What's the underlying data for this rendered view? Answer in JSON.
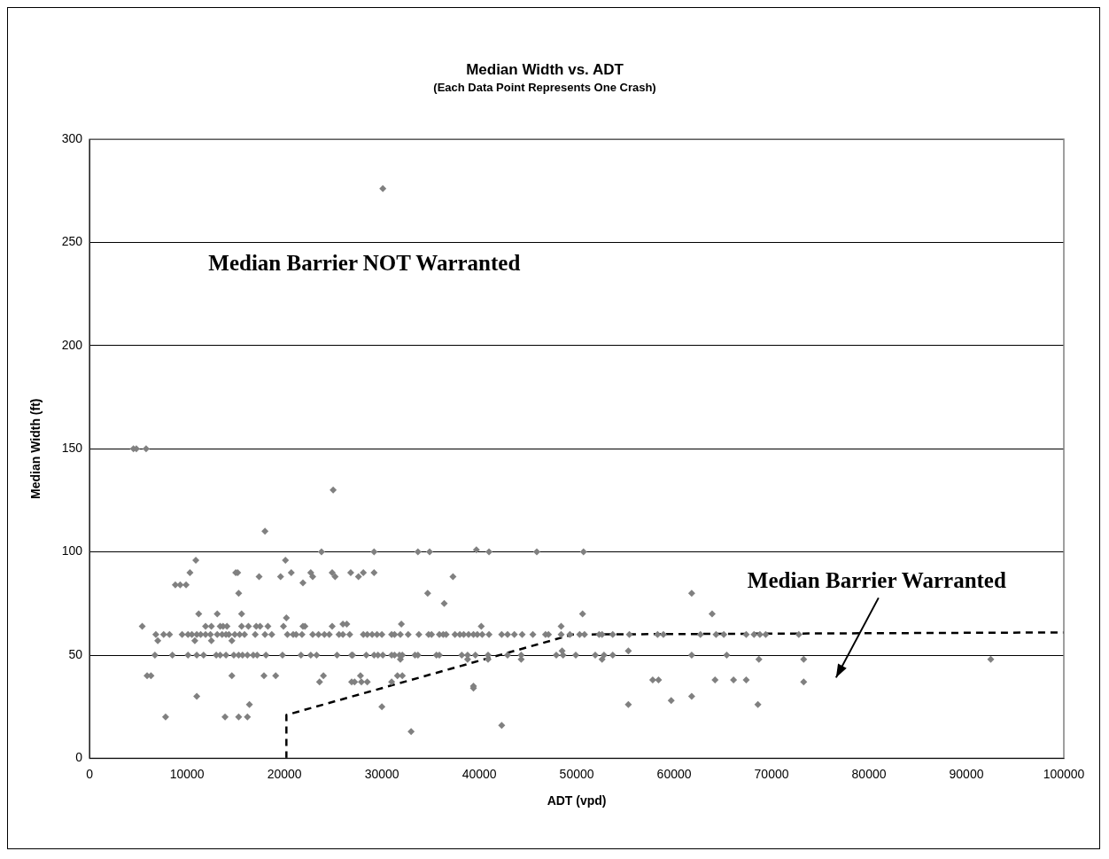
{
  "chart_data": {
    "type": "scatter",
    "title": "Median Width vs. ADT",
    "subtitle": "(Each Data Point Represents One Crash)",
    "xlabel": "ADT (vpd)",
    "ylabel": "Median Width (ft)",
    "xlim": [
      0,
      100000
    ],
    "xticks": [
      0,
      10000,
      20000,
      30000,
      40000,
      50000,
      60000,
      70000,
      80000,
      90000,
      100000
    ],
    "ylim": [
      0,
      300
    ],
    "yticks": [
      0,
      50,
      100,
      150,
      200,
      250,
      300
    ],
    "grid": "y",
    "legend": false,
    "marker": "diamond",
    "annotations": [
      "Median Barrier NOT Warranted",
      "Median Barrier Warranted"
    ],
    "series": [
      {
        "color": "#808080",
        "x": [
          25000,
          18000,
          23800,
          10900,
          20100,
          10300,
          15000,
          15200,
          17400,
          19600,
          20700,
          22700,
          22900,
          24900,
          25200,
          8800,
          9300,
          9900,
          21900,
          15300,
          11200,
          13100,
          15600,
          5400,
          20200,
          11900,
          12500,
          13400,
          13700,
          14100,
          15600,
          16300,
          17100,
          17500,
          18300,
          19900,
          21900,
          22100,
          24900,
          6800,
          7600,
          8200,
          9500,
          10100,
          10500,
          11000,
          11400,
          11900,
          12400,
          13100,
          13600,
          14000,
          14300,
          14900,
          15400,
          15900,
          17000,
          18000,
          18700,
          20300,
          20900,
          21200,
          21800,
          22900,
          23500,
          24100,
          24600,
          25600,
          7000,
          10800,
          12500,
          14600,
          6700,
          8500,
          10100,
          11000,
          11700,
          13000,
          13400,
          14000,
          14800,
          15300,
          15700,
          16200,
          16800,
          17200,
          18100,
          19800,
          21700,
          22700,
          23300,
          25400,
          5900,
          6300,
          14600,
          17900,
          19100,
          24000,
          23600,
          29200,
          33700,
          34900,
          41000,
          45900,
          50700,
          39700,
          26800,
          28100,
          29200,
          27600,
          37300,
          34700,
          36400,
          50600,
          26000,
          26400,
          32000,
          40200,
          48400,
          26000,
          26700,
          28100,
          28500,
          29000,
          29500,
          30000,
          31000,
          31300,
          31900,
          32700,
          33800,
          34800,
          35100,
          35900,
          36300,
          36600,
          37500,
          38000,
          38400,
          38900,
          39400,
          39800,
          40300,
          41000,
          42300,
          42900,
          43600,
          44400,
          45500,
          46800,
          47100,
          48400,
          49300,
          50300,
          50800,
          52300,
          26900,
          27000,
          28400,
          29200,
          29600,
          30100,
          31000,
          31300,
          31800,
          32100,
          33400,
          33700,
          35600,
          35900,
          38200,
          38800,
          39600,
          40900,
          42900,
          44300,
          47900,
          48600,
          49900,
          51900,
          48500,
          31900,
          38800,
          40900,
          44300,
          27800,
          31600,
          32100,
          26900,
          27200,
          27900,
          28500,
          31000,
          39400,
          39400,
          61800,
          63900,
          52600,
          53700,
          55400,
          58300,
          58900,
          62700,
          64300,
          65100,
          67400,
          68200,
          68800,
          69400,
          72800,
          55300,
          52800,
          53700,
          61800,
          65400,
          52600,
          68700,
          73300,
          57800,
          58400,
          64200,
          66100,
          67400,
          73300,
          61800,
          59700,
          55300,
          68600,
          92500,
          30100,
          4500,
          4800,
          5800,
          7800,
          13900,
          15300,
          16200,
          16400,
          11000,
          30000,
          33000,
          42300
        ],
        "values": [
          130,
          110,
          100,
          96,
          96,
          90,
          90,
          90,
          88,
          88,
          90,
          90,
          88,
          90,
          88,
          84,
          84,
          84,
          85,
          80,
          70,
          70,
          70,
          64,
          68,
          64,
          64,
          64,
          64,
          64,
          64,
          64,
          64,
          64,
          64,
          64,
          64,
          64,
          64,
          60,
          60,
          60,
          60,
          60,
          60,
          60,
          60,
          60,
          60,
          60,
          60,
          60,
          60,
          60,
          60,
          60,
          60,
          60,
          60,
          60,
          60,
          60,
          60,
          60,
          60,
          60,
          60,
          60,
          57,
          57,
          57,
          57,
          50,
          50,
          50,
          50,
          50,
          50,
          50,
          50,
          50,
          50,
          50,
          50,
          50,
          50,
          50,
          50,
          50,
          50,
          50,
          50,
          40,
          40,
          40,
          40,
          40,
          40,
          37,
          100,
          100,
          100,
          100,
          100,
          100,
          101,
          90,
          90,
          90,
          88,
          88,
          80,
          75,
          70,
          65,
          65,
          65,
          64,
          64,
          60,
          60,
          60,
          60,
          60,
          60,
          60,
          60,
          60,
          60,
          60,
          60,
          60,
          60,
          60,
          60,
          60,
          60,
          60,
          60,
          60,
          60,
          60,
          60,
          60,
          60,
          60,
          60,
          60,
          60,
          60,
          60,
          60,
          60,
          60,
          60,
          60,
          50,
          50,
          50,
          50,
          50,
          50,
          50,
          50,
          50,
          50,
          50,
          50,
          50,
          50,
          50,
          50,
          50,
          50,
          50,
          50,
          50,
          50,
          50,
          50,
          52,
          48,
          48,
          48,
          48,
          40,
          40,
          40,
          37,
          37,
          37,
          37,
          37,
          35,
          34,
          80,
          70,
          60,
          60,
          60,
          60,
          60,
          60,
          60,
          60,
          60,
          60,
          60,
          60,
          60,
          52,
          50,
          50,
          50,
          50,
          48,
          48,
          48,
          38,
          38,
          38,
          38,
          38,
          37,
          30,
          28,
          26,
          26,
          48,
          276,
          150,
          150,
          150,
          20,
          20,
          20,
          20,
          26,
          30,
          25,
          13,
          16
        ]
      },
      {
        "type": "line",
        "color": "#000000",
        "line_style": "dashed",
        "marker": "none",
        "x": [
          20200,
          20200,
          49600,
          100000
        ],
        "values": [
          0,
          21,
          60,
          61
        ]
      }
    ]
  }
}
